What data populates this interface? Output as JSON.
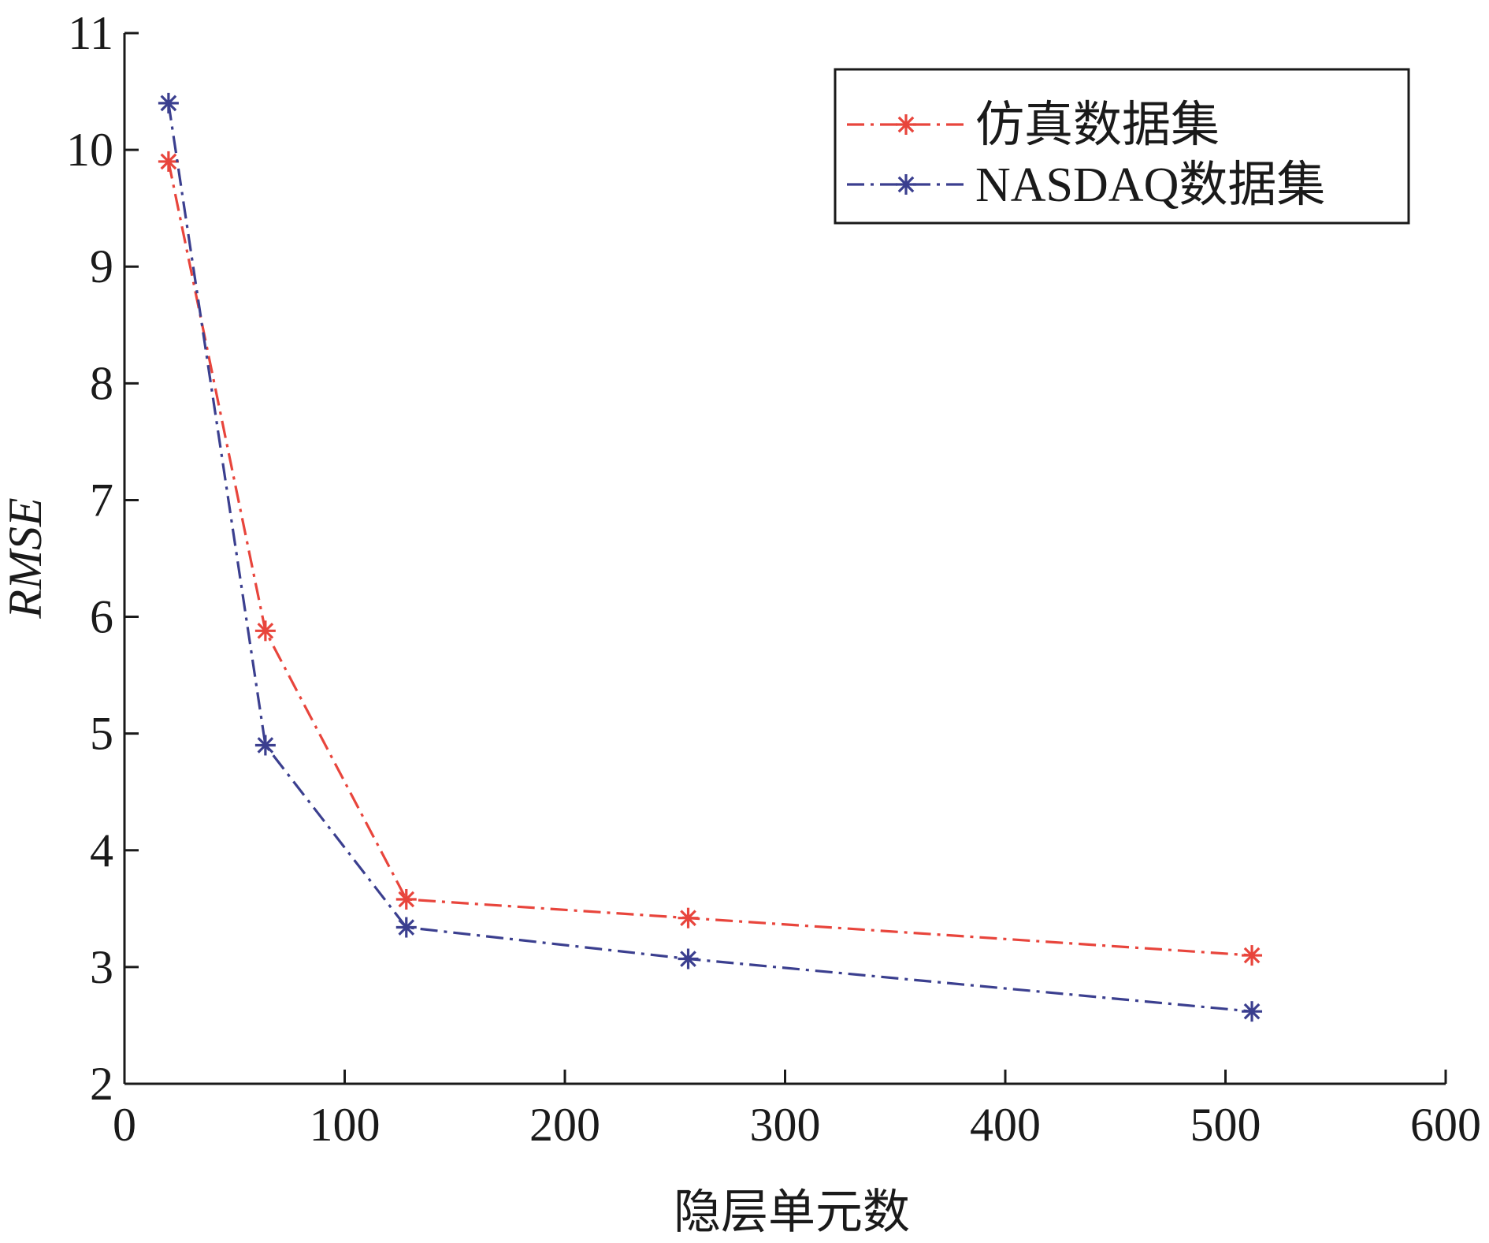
{
  "chart_data": {
    "type": "line",
    "xlabel": "隐层单元数",
    "ylabel": "RMSE",
    "xlim": [
      0,
      600
    ],
    "ylim": [
      2,
      11
    ],
    "xticks": [
      "0",
      "100",
      "200",
      "300",
      "400",
      "500",
      "600"
    ],
    "yticks": [
      "2",
      "3",
      "4",
      "5",
      "6",
      "7",
      "8",
      "9",
      "10",
      "11"
    ],
    "grid": false,
    "legend_position": "top-right",
    "series": [
      {
        "name": "仿真数据集",
        "color": "#e8453c",
        "marker": "asterisk",
        "line_style": "dash-dot",
        "x": [
          20,
          64,
          128,
          256,
          512
        ],
        "y": [
          9.9,
          5.88,
          3.58,
          3.42,
          3.1
        ]
      },
      {
        "name": "NASDAQ数据集",
        "color": "#3b3f8f",
        "marker": "asterisk",
        "line_style": "dash-dot",
        "x": [
          20,
          64,
          128,
          256,
          512
        ],
        "y": [
          10.4,
          4.9,
          3.34,
          3.07,
          2.62
        ]
      }
    ]
  }
}
